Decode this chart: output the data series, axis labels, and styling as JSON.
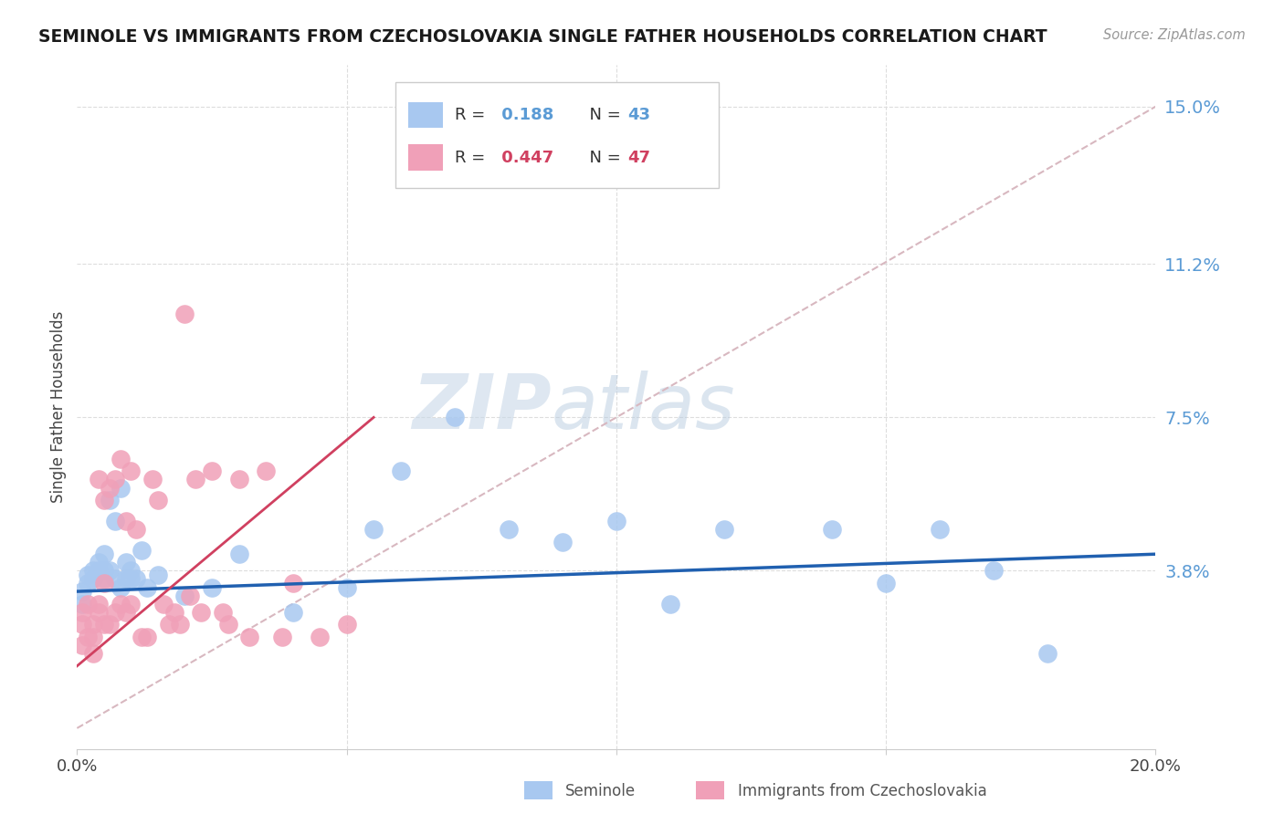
{
  "title": "SEMINOLE VS IMMIGRANTS FROM CZECHOSLOVAKIA SINGLE FATHER HOUSEHOLDS CORRELATION CHART",
  "source": "Source: ZipAtlas.com",
  "ylabel": "Single Father Households",
  "xlim": [
    0.0,
    0.2
  ],
  "ylim": [
    -0.005,
    0.16
  ],
  "yticks": [
    0.038,
    0.075,
    0.112,
    0.15
  ],
  "ytick_labels": [
    "3.8%",
    "7.5%",
    "11.2%",
    "15.0%"
  ],
  "xticks": [
    0.0,
    0.05,
    0.1,
    0.15,
    0.2
  ],
  "xtick_labels": [
    "0.0%",
    "",
    "",
    "",
    "20.0%"
  ],
  "blue_R": 0.188,
  "blue_N": 43,
  "pink_R": 0.447,
  "pink_N": 47,
  "blue_color": "#A8C8F0",
  "pink_color": "#F0A0B8",
  "blue_line_color": "#2060B0",
  "pink_line_color": "#D04060",
  "ref_line_color": "#D8B8C0",
  "background_color": "#FFFFFF",
  "seminole_x": [
    0.001,
    0.001,
    0.002,
    0.002,
    0.003,
    0.003,
    0.004,
    0.004,
    0.005,
    0.005,
    0.005,
    0.006,
    0.006,
    0.007,
    0.007,
    0.008,
    0.008,
    0.009,
    0.009,
    0.01,
    0.01,
    0.011,
    0.012,
    0.013,
    0.015,
    0.02,
    0.025,
    0.03,
    0.04,
    0.05,
    0.055,
    0.06,
    0.07,
    0.08,
    0.09,
    0.1,
    0.11,
    0.12,
    0.14,
    0.15,
    0.16,
    0.17,
    0.18
  ],
  "seminole_y": [
    0.03,
    0.033,
    0.035,
    0.037,
    0.036,
    0.038,
    0.038,
    0.04,
    0.036,
    0.038,
    0.042,
    0.055,
    0.038,
    0.05,
    0.036,
    0.058,
    0.034,
    0.04,
    0.036,
    0.038,
    0.036,
    0.036,
    0.043,
    0.034,
    0.037,
    0.032,
    0.034,
    0.042,
    0.028,
    0.034,
    0.048,
    0.062,
    0.075,
    0.048,
    0.045,
    0.05,
    0.03,
    0.048,
    0.048,
    0.035,
    0.048,
    0.038,
    0.018
  ],
  "czech_x": [
    0.001,
    0.001,
    0.001,
    0.002,
    0.002,
    0.003,
    0.003,
    0.003,
    0.004,
    0.004,
    0.004,
    0.005,
    0.005,
    0.005,
    0.006,
    0.006,
    0.007,
    0.007,
    0.008,
    0.008,
    0.009,
    0.009,
    0.01,
    0.01,
    0.011,
    0.012,
    0.013,
    0.014,
    0.015,
    0.016,
    0.017,
    0.018,
    0.019,
    0.02,
    0.021,
    0.022,
    0.023,
    0.025,
    0.027,
    0.028,
    0.03,
    0.032,
    0.035,
    0.038,
    0.04,
    0.045,
    0.05
  ],
  "czech_y": [
    0.02,
    0.025,
    0.028,
    0.022,
    0.03,
    0.018,
    0.022,
    0.025,
    0.028,
    0.03,
    0.06,
    0.025,
    0.035,
    0.055,
    0.025,
    0.058,
    0.028,
    0.06,
    0.03,
    0.065,
    0.028,
    0.05,
    0.03,
    0.062,
    0.048,
    0.022,
    0.022,
    0.06,
    0.055,
    0.03,
    0.025,
    0.028,
    0.025,
    0.1,
    0.032,
    0.06,
    0.028,
    0.062,
    0.028,
    0.025,
    0.06,
    0.022,
    0.062,
    0.022,
    0.035,
    0.022,
    0.025
  ],
  "watermark_zip": "ZIP",
  "watermark_atlas": "atlas",
  "blue_trend_x0": 0.0,
  "blue_trend_y0": 0.033,
  "blue_trend_x1": 0.2,
  "blue_trend_y1": 0.042,
  "pink_trend_x0": 0.0,
  "pink_trend_y0": 0.015,
  "pink_trend_x1": 0.055,
  "pink_trend_y1": 0.075
}
